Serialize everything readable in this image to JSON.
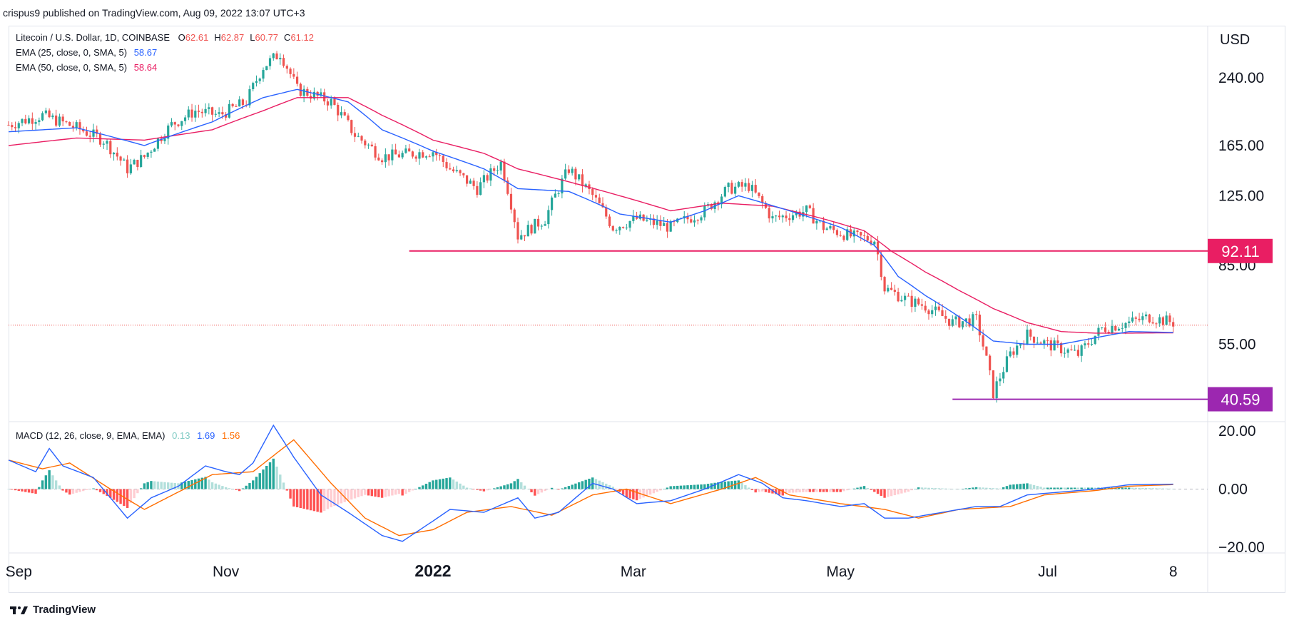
{
  "caption": "crispus9 published on TradingView.com, Aug 09, 2022 13:07 UTC+3",
  "brand": "TradingView",
  "currency": "USD",
  "legend": {
    "symbol": "Litecoin / U.S. Dollar, 1D, COINBASE",
    "ohlc": [
      {
        "k": "O",
        "v": "62.61"
      },
      {
        "k": "H",
        "v": "62.87"
      },
      {
        "k": "L",
        "v": "60.77"
      },
      {
        "k": "C",
        "v": "61.12"
      }
    ],
    "ema25_label": "EMA (25, close, 0, SMA, 5)",
    "ema25_value": "58.67",
    "ema50_label": "EMA (50, close, 0, SMA, 5)",
    "ema50_value": "58.64",
    "macd_label": "MACD (12, 26, close, 9, EMA, EMA)",
    "macd_values": [
      "0.13",
      "1.69",
      "1.56"
    ]
  },
  "colors": {
    "up": "#26a69a",
    "down": "#ef5350",
    "ema25": "#2962ff",
    "ema50": "#e91e63",
    "macd": "#2962ff",
    "signal": "#ff6d00",
    "hist_up_strong": "#26a69a",
    "hist_up_weak": "#b2dfdb",
    "hist_down_strong": "#ff5252",
    "hist_down_weak": "#ffcdd2",
    "level_resistance": "#e91e63",
    "level_support": "#9c27b0",
    "grid": "#f0f3fa",
    "text": "#131722"
  },
  "chart_data": [
    {
      "type": "candlestick",
      "title": "Litecoin / U.S. Dollar, 1D, COINBASE",
      "x_tick_labels": [
        "Sep",
        "Nov",
        "2022",
        "Mar",
        "May",
        "Jul",
        "8"
      ],
      "x_tick_days": [
        3,
        64,
        125,
        184,
        245,
        306,
        343
      ],
      "y_tick_labels": [
        "240.00",
        "165.00",
        "125.00",
        "85.00",
        "55.00"
      ],
      "y_scale": "log",
      "ylim": [
        36,
        320
      ],
      "last_price": 61.12,
      "horizontal_levels": [
        {
          "label": "92.11",
          "value": 92.11,
          "start_day": 118,
          "color": "#e91e63"
        },
        {
          "label": "40.59",
          "value": 40.59,
          "start_day": 278,
          "color": "#9c27b0"
        }
      ],
      "price_path_anchors": [
        [
          0,
          185
        ],
        [
          10,
          195
        ],
        [
          20,
          182
        ],
        [
          28,
          170
        ],
        [
          35,
          145
        ],
        [
          40,
          155
        ],
        [
          48,
          185
        ],
        [
          55,
          200
        ],
        [
          62,
          195
        ],
        [
          70,
          210
        ],
        [
          75,
          255
        ],
        [
          80,
          275
        ],
        [
          85,
          225
        ],
        [
          95,
          210
        ],
        [
          102,
          175
        ],
        [
          110,
          155
        ],
        [
          125,
          160
        ],
        [
          130,
          145
        ],
        [
          138,
          130
        ],
        [
          145,
          150
        ],
        [
          150,
          100
        ],
        [
          158,
          110
        ],
        [
          165,
          145
        ],
        [
          172,
          125
        ],
        [
          178,
          105
        ],
        [
          185,
          110
        ],
        [
          195,
          105
        ],
        [
          205,
          115
        ],
        [
          212,
          130
        ],
        [
          218,
          132
        ],
        [
          225,
          110
        ],
        [
          235,
          115
        ],
        [
          240,
          105
        ],
        [
          248,
          100
        ],
        [
          255,
          98
        ],
        [
          258,
          75
        ],
        [
          265,
          70
        ],
        [
          270,
          68
        ],
        [
          278,
          62
        ],
        [
          285,
          63
        ],
        [
          290,
          42
        ],
        [
          295,
          52
        ],
        [
          300,
          58
        ],
        [
          306,
          55
        ],
        [
          315,
          52
        ],
        [
          322,
          60
        ],
        [
          330,
          62
        ],
        [
          336,
          64
        ],
        [
          343,
          62
        ]
      ],
      "ema25_anchors": [
        [
          0,
          178
        ],
        [
          20,
          182
        ],
        [
          40,
          165
        ],
        [
          60,
          188
        ],
        [
          75,
          215
        ],
        [
          85,
          225
        ],
        [
          100,
          210
        ],
        [
          110,
          180
        ],
        [
          125,
          160
        ],
        [
          140,
          145
        ],
        [
          150,
          130
        ],
        [
          165,
          128
        ],
        [
          180,
          113
        ],
        [
          195,
          108
        ],
        [
          205,
          115
        ],
        [
          215,
          125
        ],
        [
          230,
          115
        ],
        [
          245,
          105
        ],
        [
          255,
          95
        ],
        [
          262,
          80
        ],
        [
          270,
          72
        ],
        [
          280,
          64
        ],
        [
          290,
          56
        ],
        [
          300,
          55
        ],
        [
          310,
          55
        ],
        [
          320,
          57
        ],
        [
          330,
          59
        ],
        [
          343,
          58.7
        ]
      ],
      "ema50_anchors": [
        [
          0,
          165
        ],
        [
          20,
          172
        ],
        [
          40,
          170
        ],
        [
          60,
          180
        ],
        [
          75,
          200
        ],
        [
          85,
          215
        ],
        [
          100,
          215
        ],
        [
          110,
          195
        ],
        [
          125,
          170
        ],
        [
          140,
          158
        ],
        [
          150,
          145
        ],
        [
          165,
          135
        ],
        [
          180,
          125
        ],
        [
          195,
          115
        ],
        [
          210,
          120
        ],
        [
          225,
          118
        ],
        [
          240,
          110
        ],
        [
          252,
          103
        ],
        [
          260,
          92
        ],
        [
          270,
          82
        ],
        [
          280,
          74
        ],
        [
          290,
          67
        ],
        [
          300,
          62
        ],
        [
          310,
          59
        ],
        [
          320,
          58.5
        ],
        [
          330,
          58.5
        ],
        [
          343,
          58.6
        ]
      ]
    },
    {
      "type": "line",
      "title": "MACD (12, 26, close, 9, EMA, EMA)",
      "y_tick_labels": [
        "20.00",
        "0.00",
        "-20.00"
      ],
      "ylim": [
        -22,
        23
      ],
      "macd_anchors": [
        [
          0,
          10
        ],
        [
          8,
          6
        ],
        [
          12,
          14
        ],
        [
          16,
          8
        ],
        [
          25,
          4
        ],
        [
          30,
          -3
        ],
        [
          35,
          -10
        ],
        [
          42,
          -3
        ],
        [
          50,
          1
        ],
        [
          58,
          8
        ],
        [
          64,
          6
        ],
        [
          68,
          5
        ],
        [
          72,
          9
        ],
        [
          78,
          22
        ],
        [
          84,
          11
        ],
        [
          92,
          -2
        ],
        [
          100,
          -8
        ],
        [
          110,
          -16
        ],
        [
          116,
          -18
        ],
        [
          125,
          -11
        ],
        [
          130,
          -7
        ],
        [
          140,
          -8
        ],
        [
          150,
          -3
        ],
        [
          155,
          -10
        ],
        [
          162,
          -8
        ],
        [
          172,
          2
        ],
        [
          178,
          0
        ],
        [
          185,
          -5
        ],
        [
          195,
          -4
        ],
        [
          205,
          0
        ],
        [
          215,
          5
        ],
        [
          222,
          2
        ],
        [
          228,
          -3
        ],
        [
          235,
          -4
        ],
        [
          245,
          -6
        ],
        [
          252,
          -5
        ],
        [
          258,
          -10
        ],
        [
          265,
          -10
        ],
        [
          275,
          -8
        ],
        [
          285,
          -6
        ],
        [
          292,
          -6
        ],
        [
          300,
          -2
        ],
        [
          310,
          -1
        ],
        [
          320,
          0
        ],
        [
          330,
          1.5
        ],
        [
          343,
          1.7
        ]
      ],
      "signal_anchors": [
        [
          0,
          10
        ],
        [
          10,
          7
        ],
        [
          18,
          9
        ],
        [
          30,
          0
        ],
        [
          40,
          -7
        ],
        [
          50,
          -1
        ],
        [
          60,
          5
        ],
        [
          72,
          6
        ],
        [
          84,
          17
        ],
        [
          95,
          2
        ],
        [
          105,
          -10
        ],
        [
          115,
          -16
        ],
        [
          125,
          -14
        ],
        [
          135,
          -8
        ],
        [
          148,
          -6
        ],
        [
          160,
          -9
        ],
        [
          172,
          -2
        ],
        [
          182,
          0
        ],
        [
          195,
          -5
        ],
        [
          210,
          0
        ],
        [
          220,
          4
        ],
        [
          230,
          -2
        ],
        [
          245,
          -5
        ],
        [
          258,
          -7
        ],
        [
          268,
          -10
        ],
        [
          280,
          -7
        ],
        [
          295,
          -6
        ],
        [
          305,
          -2
        ],
        [
          320,
          -0.5
        ],
        [
          330,
          1
        ],
        [
          343,
          1.56
        ]
      ],
      "last_values": {
        "histogram": 0.13,
        "macd": 1.69,
        "signal": 1.56
      }
    }
  ]
}
